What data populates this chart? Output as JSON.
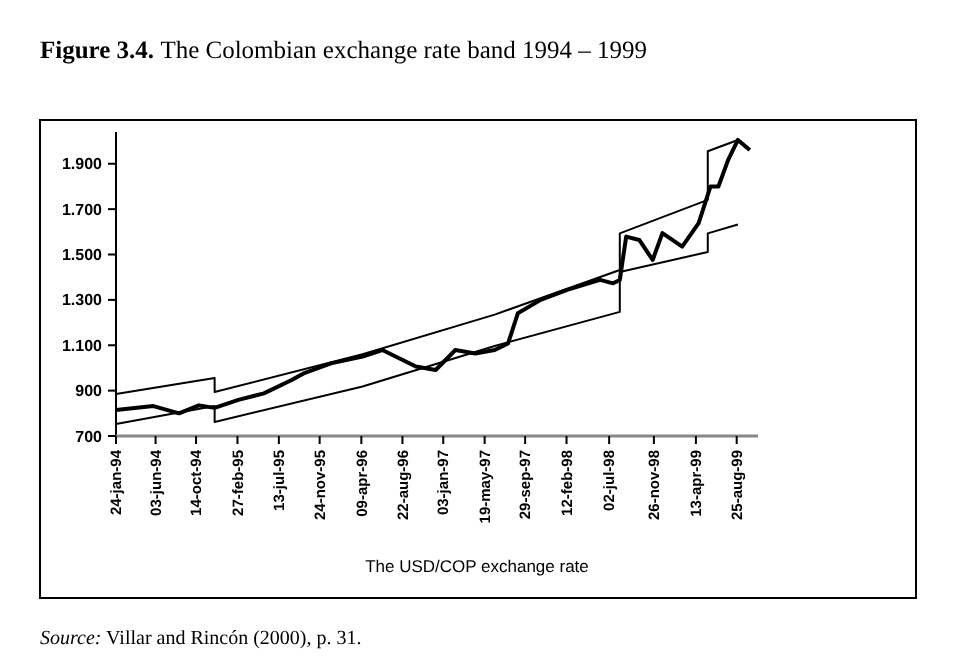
{
  "chart_data": {
    "type": "line",
    "title": "Figure 3.4. The Colombian exchange rate band 1994 – 1999",
    "xlabel": "The USD/COP exchange rate",
    "annotations": [
      "Source: Villar and Rincón (2000), p. 31."
    ],
    "series": [
      {
        "color": "#000000",
        "x": [
          "1994-01-24",
          "1994-12-14",
          "1994-12-14",
          "1996-04-13",
          "1997-06-21",
          "1998-08-06",
          "1998-08-06",
          "1999-05-22",
          "1999-05-22",
          "1999-08-29"
        ],
        "values": [
          885,
          956,
          894,
          1060,
          1235,
          1432,
          1593,
          1741,
          1955,
          2005
        ]
      },
      {
        "color": "#000000",
        "x": [
          "1994-01-24",
          "1994-12-14",
          "1994-12-14",
          "1996-04-13",
          "1997-06-21",
          "1998-08-06",
          "1998-08-06",
          "1999-05-22",
          "1999-05-22",
          "1999-08-29"
        ],
        "values": [
          753,
          832,
          762,
          918,
          1097,
          1247,
          1423,
          1511,
          1593,
          1632
        ]
      },
      {
        "color": "#000000",
        "x": [
          "1994-01-24",
          "1994-05-27",
          "1994-08-19",
          "1994-10-23",
          "1994-12-14",
          "1995-03-02",
          "1995-05-25",
          "1995-08-24",
          "1995-10-02",
          "1995-12-31",
          "1996-04-13",
          "1996-06-17",
          "1996-10-05",
          "1996-12-09",
          "1997-02-12",
          "1997-04-18",
          "1997-06-21",
          "1997-08-04",
          "1997-09-05",
          "1997-11-19",
          "1998-02-14",
          "1998-06-02",
          "1998-07-15",
          "1998-08-06",
          "1998-08-27",
          "1998-10-09",
          "1998-11-22",
          "1998-12-24",
          "1999-02-27",
          "1999-04-22",
          "1999-05-31",
          "1999-06-26",
          "1999-07-28",
          "1999-08-29",
          "1999-10-07"
        ],
        "values": [
          815,
          832,
          800,
          835,
          824,
          859,
          888,
          947,
          976,
          1020,
          1050,
          1079,
          1006,
          991,
          1079,
          1064,
          1079,
          1108,
          1241,
          1300,
          1344,
          1388,
          1373,
          1388,
          1579,
          1564,
          1476,
          1594,
          1535,
          1638,
          1800,
          1800,
          1917,
          2005,
          1961
        ]
      }
    ],
    "xlim": [
      "1994-01-24",
      "1999-11-03"
    ],
    "xticks": [
      {
        "value": "1994-01-24",
        "label": "24-jan-94"
      },
      {
        "value": "1994-06-03",
        "label": "03-jun-94"
      },
      {
        "value": "1994-10-14",
        "label": "14-oct-94"
      },
      {
        "value": "1995-02-27",
        "label": "27-feb-95"
      },
      {
        "value": "1995-07-13",
        "label": "13-jul-95"
      },
      {
        "value": "1995-11-24",
        "label": "24-nov-95"
      },
      {
        "value": "1996-04-09",
        "label": "09-apr-96"
      },
      {
        "value": "1996-08-22",
        "label": "22-aug-96"
      },
      {
        "value": "1997-01-03",
        "label": "03-jan-97"
      },
      {
        "value": "1997-05-19",
        "label": "19-may-97"
      },
      {
        "value": "1997-09-29",
        "label": "29-sep-97"
      },
      {
        "value": "1998-02-12",
        "label": "12-feb-98"
      },
      {
        "value": "1998-07-02",
        "label": "02-jul-98"
      },
      {
        "value": "1998-11-26",
        "label": "26-nov-98"
      },
      {
        "value": "1999-04-13",
        "label": "13-apr-99"
      },
      {
        "value": "1999-08-25",
        "label": "25-aug-99"
      }
    ],
    "ylim": [
      700,
      2040
    ],
    "yticks": [
      {
        "value": 700,
        "label": "700"
      },
      {
        "value": 900,
        "label": "900"
      },
      {
        "value": 1100,
        "label": "1.100"
      },
      {
        "value": 1300,
        "label": "1.300"
      },
      {
        "value": 1500,
        "label": "1.500"
      },
      {
        "value": 1700,
        "label": "1.700"
      },
      {
        "value": 1900,
        "label": "1.900"
      }
    ],
    "grid": false,
    "marker": "none",
    "line_style": "solid"
  }
}
